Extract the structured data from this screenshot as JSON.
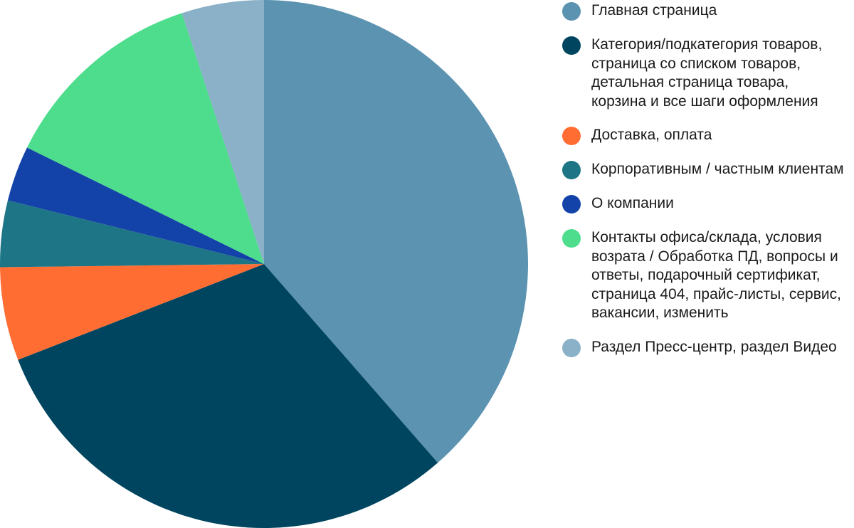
{
  "chart_data": {
    "type": "pie",
    "title": "",
    "legend_position": "right",
    "series": [
      {
        "name": "",
        "slices": [
          {
            "label": "Главная страница",
            "value": 39.8,
            "color": "#5b93b1"
          },
          {
            "label": "Категория/подкатегория товаров, страница со списком товаров, детальная страница товара, корзина и все шаги оформления",
            "value": 31.5,
            "color": "#00455f"
          },
          {
            "label": "Доставка, оплата",
            "value": 5.9,
            "color": "#ff6d33"
          },
          {
            "label": "Корпоративным / частным клиентам",
            "value": 4.2,
            "color": "#1e7585"
          },
          {
            "label": "О компании",
            "value": 3.5,
            "color": "#1343a9"
          },
          {
            "label": "Контакты офиса/склада, условия возрата / Обработка ПД, вопросы и ответы, подарочный сертификат, страница 404, прайс-листы, сервис, вакансии, изменить",
            "value": 13.1,
            "color": "#4ddd8c"
          },
          {
            "label": "Раздел Пресс-центр, раздел Видео",
            "value": 5.2,
            "color": "#8ab1c7"
          }
        ]
      }
    ]
  }
}
